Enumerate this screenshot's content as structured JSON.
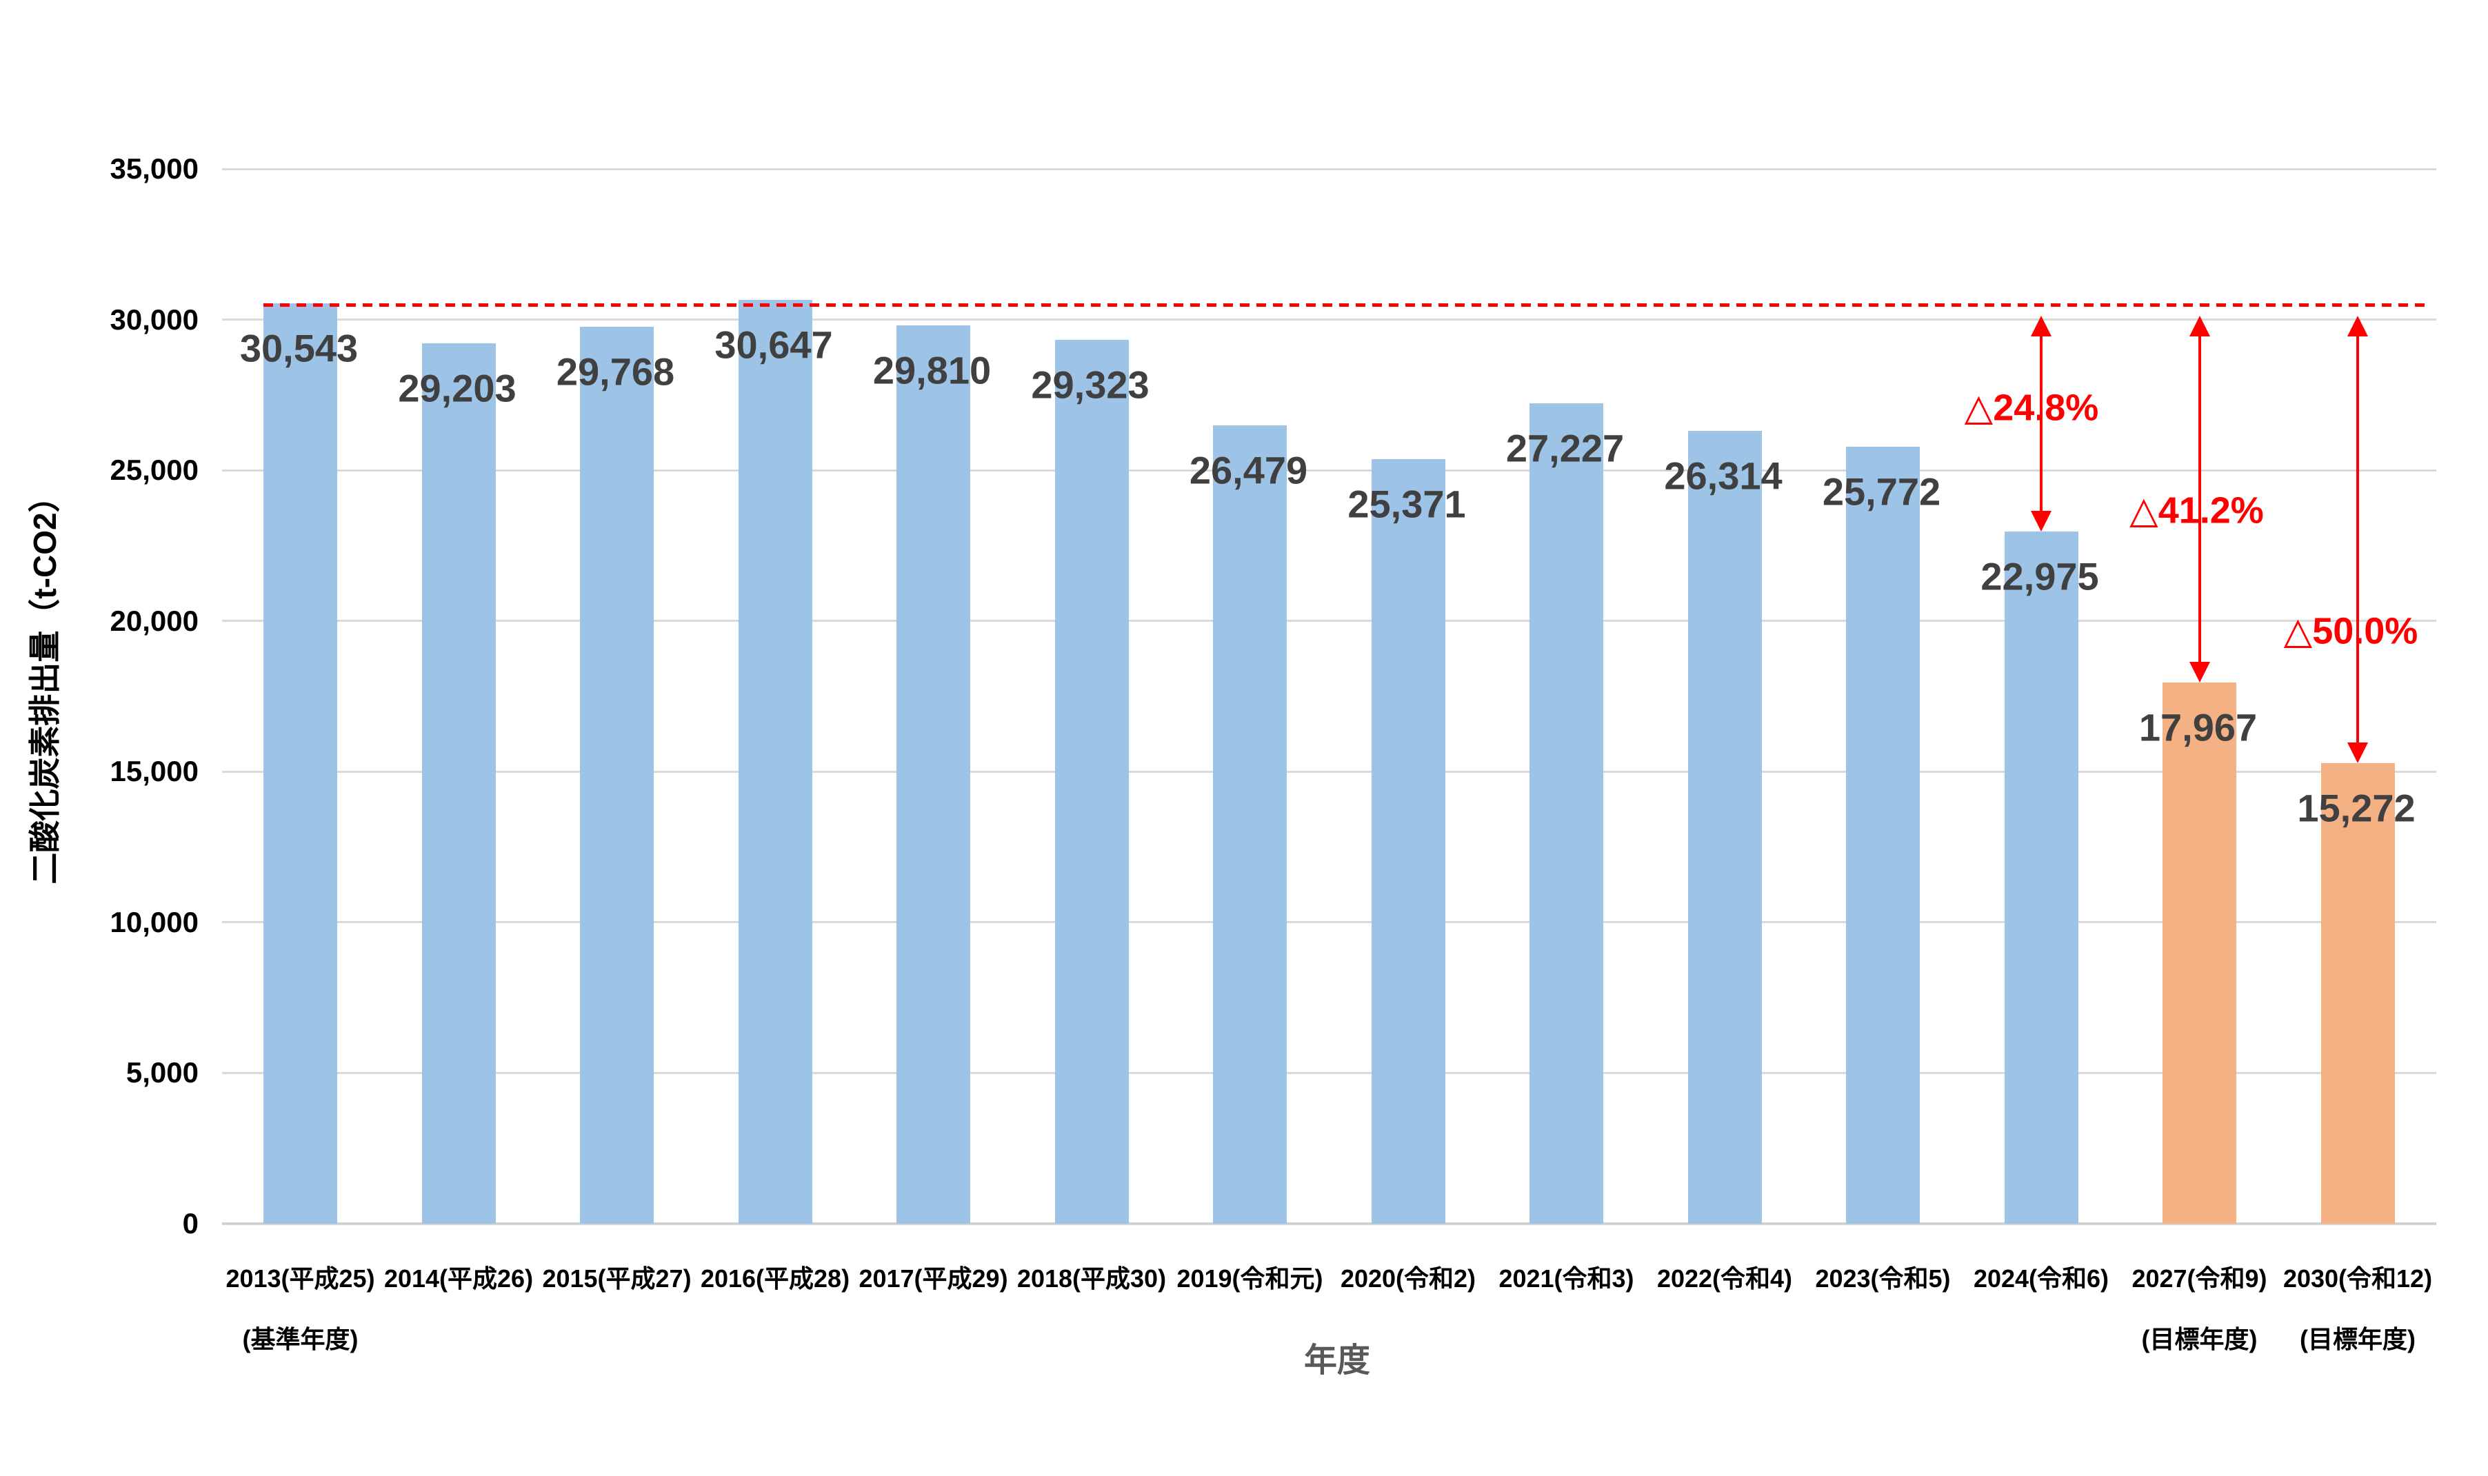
{
  "chart_data": {
    "type": "bar",
    "title": "",
    "xlabel": "年度",
    "ylabel": "二酸化炭素排出量（t-CO2）",
    "ylim": [
      0,
      35000
    ],
    "ytick_interval": 5000,
    "ytick_labels": [
      "0",
      "5,000",
      "10,000",
      "15,000",
      "20,000",
      "25,000",
      "30,000",
      "35,000"
    ],
    "grid": true,
    "legend": false,
    "bars": [
      {
        "category_line1": "2013(平成25)",
        "category_line2": "(基準年度)",
        "value": 30543,
        "value_label": "30,543",
        "role": "actual"
      },
      {
        "category_line1": "2014(平成26)",
        "category_line2": "",
        "value": 29203,
        "value_label": "29,203",
        "role": "actual"
      },
      {
        "category_line1": "2015(平成27)",
        "category_line2": "",
        "value": 29768,
        "value_label": "29,768",
        "role": "actual"
      },
      {
        "category_line1": "2016(平成28)",
        "category_line2": "",
        "value": 30647,
        "value_label": "30,647",
        "role": "actual"
      },
      {
        "category_line1": "2017(平成29)",
        "category_line2": "",
        "value": 29810,
        "value_label": "29,810",
        "role": "actual"
      },
      {
        "category_line1": "2018(平成30)",
        "category_line2": "",
        "value": 29323,
        "value_label": "29,323",
        "role": "actual"
      },
      {
        "category_line1": "2019(令和元)",
        "category_line2": "",
        "value": 26479,
        "value_label": "26,479",
        "role": "actual"
      },
      {
        "category_line1": "2020(令和2)",
        "category_line2": "",
        "value": 25371,
        "value_label": "25,371",
        "role": "actual"
      },
      {
        "category_line1": "2021(令和3)",
        "category_line2": "",
        "value": 27227,
        "value_label": "27,227",
        "role": "actual"
      },
      {
        "category_line1": "2022(令和4)",
        "category_line2": "",
        "value": 26314,
        "value_label": "26,314",
        "role": "actual"
      },
      {
        "category_line1": "2023(令和5)",
        "category_line2": "",
        "value": 25772,
        "value_label": "25,772",
        "role": "actual"
      },
      {
        "category_line1": "2024(令和6)",
        "category_line2": "",
        "value": 22975,
        "value_label": "22,975",
        "role": "actual"
      },
      {
        "category_line1": "2027(令和9)",
        "category_line2": "(目標年度)",
        "value": 17967,
        "value_label": "17,967",
        "role": "target"
      },
      {
        "category_line1": "2030(令和12)",
        "category_line2": "(目標年度)",
        "value": 15272,
        "value_label": "15,272",
        "role": "target"
      }
    ],
    "reference_line": {
      "value": 30543,
      "style": "dashed"
    },
    "annotations": [
      {
        "triangle": "△",
        "text": "24.8%",
        "full_text": "△24.8%",
        "bar_index": 11
      },
      {
        "triangle": "△",
        "text": "41.2%",
        "full_text": "△41.2%",
        "bar_index": 12
      },
      {
        "triangle": "△",
        "text": "50.0%",
        "full_text": "△50.0%",
        "bar_index": 13
      }
    ],
    "colors": {
      "actual_bar": "#9DC3E6",
      "target_bar": "#F4B183",
      "annotation_red": "#FF0000",
      "gridline": "#D9D9D9",
      "axis_line": "#D2D2D2",
      "value_label": "#404040",
      "tick_label": "#000000",
      "x_title": "#595959",
      "background": "#FFFFFF"
    }
  }
}
